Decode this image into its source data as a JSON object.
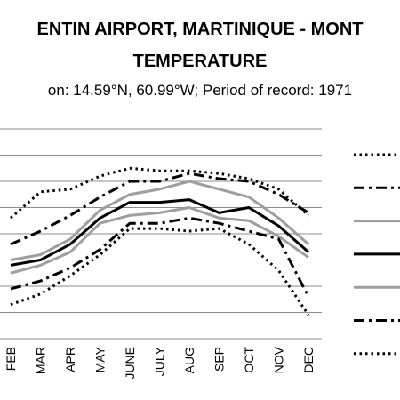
{
  "chart_data": {
    "type": "line",
    "title_line1": "ENTIN AIRPORT, MARTINIQUE - MONT",
    "title_line2": "TEMPERATURE",
    "subtitle": "on: 14.59°N, 60.99°W; Period of record: 1971",
    "categories": [
      "FEB",
      "MAR",
      "APR",
      "MAY",
      "JUNE",
      "JULY",
      "AUG",
      "SEP",
      "OCT",
      "NOV",
      "DEC"
    ],
    "grid": true,
    "legend_placement": "right",
    "series": [
      {
        "style": "dotted",
        "color": "#000000",
        "values": [
          4.6,
          5.6,
          5.7,
          6.2,
          6.5,
          6.4,
          6.4,
          6.3,
          6.1,
          5.7,
          4.7
        ]
      },
      {
        "style": "dashdot",
        "color": "#000000",
        "values": [
          3.6,
          4.1,
          4.7,
          5.4,
          6.0,
          6.0,
          6.3,
          6.1,
          6.0,
          5.5,
          4.8
        ]
      },
      {
        "style": "solid",
        "color": "#9e9e9e",
        "values": [
          3.0,
          3.2,
          3.8,
          4.9,
          5.5,
          5.7,
          6.0,
          5.7,
          5.4,
          4.6,
          3.6
        ]
      },
      {
        "style": "solid",
        "color": "#000000",
        "values": [
          2.8,
          3.0,
          3.6,
          4.6,
          5.2,
          5.2,
          5.3,
          4.8,
          5.0,
          4.3,
          3.3
        ]
      },
      {
        "style": "solid",
        "color": "#9e9e9e",
        "values": [
          2.5,
          2.8,
          3.3,
          4.4,
          4.7,
          4.8,
          5.0,
          4.6,
          4.5,
          3.9,
          3.1
        ]
      },
      {
        "style": "dashdot",
        "color": "#000000",
        "values": [
          1.9,
          2.2,
          2.7,
          3.4,
          4.4,
          4.4,
          4.6,
          4.4,
          4.1,
          3.8,
          1.6
        ]
      },
      {
        "style": "dotted",
        "color": "#000000",
        "values": [
          1.3,
          1.7,
          2.4,
          3.2,
          4.2,
          4.2,
          4.1,
          4.2,
          3.6,
          2.6,
          0.9
        ]
      }
    ]
  }
}
